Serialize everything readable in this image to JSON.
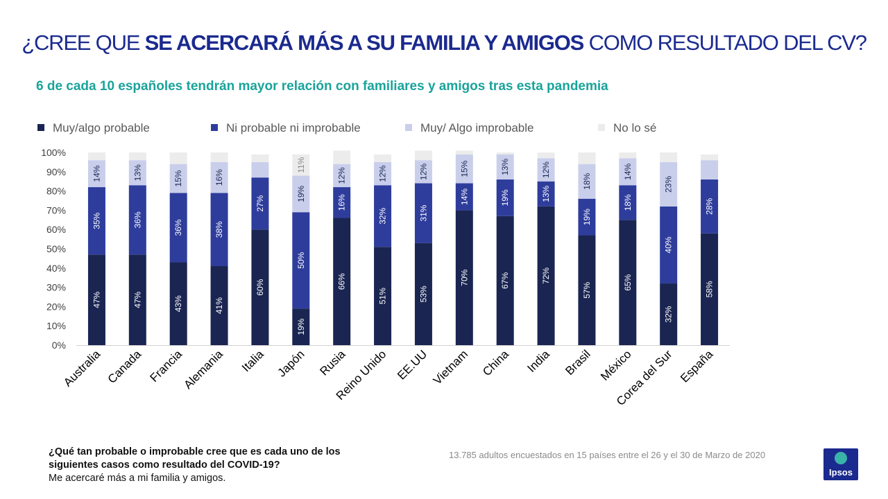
{
  "header": {
    "title_prefix": "¿CREE QUE ",
    "title_bold": "SE ACERCARÁ MÁS A SU FAMILIA Y AMIGOS",
    "title_suffix": " COMO RESULTADO DEL CV?",
    "subtitle": "6 de cada 10 españoles tendrán mayor relación con familiares  y amigos tras esta pandemia"
  },
  "colors": {
    "title": "#1b2a8f",
    "subtitle": "#1aa39a",
    "muy_algo_probable": "#1a2552",
    "ni_probable": "#2e3d9c",
    "improbable": "#c9cfeb",
    "no_lo_se": "#ececec",
    "logo": "#1b2a8f"
  },
  "chart_data": {
    "type": "bar",
    "stacked": true,
    "title": "",
    "xlabel": "",
    "ylabel": "",
    "ylim": [
      0,
      100
    ],
    "yticks": [
      "0%",
      "10%",
      "20%",
      "30%",
      "40%",
      "50%",
      "60%",
      "70%",
      "80%",
      "90%",
      "100%"
    ],
    "legend_position": "top",
    "categories": [
      "Australia",
      "Canada",
      "Francia",
      "Alemania",
      "Italia",
      "Japón",
      "Rusia",
      "Reino Unido",
      "EE.UU",
      "Vietnam",
      "China",
      "India",
      "Brasil",
      "México",
      "Corea del Sur",
      "España"
    ],
    "series": [
      {
        "name": "Muy/algo probable",
        "values": [
          47,
          47,
          43,
          41,
          60,
          19,
          66,
          51,
          53,
          70,
          67,
          72,
          57,
          65,
          32,
          58
        ],
        "labels": [
          "47%",
          "47%",
          "43%",
          "41%",
          "60%",
          "19%",
          "66%",
          "51%",
          "53%",
          "70%",
          "67%",
          "72%",
          "57%",
          "65%",
          "32%",
          "58%"
        ]
      },
      {
        "name": "Ni probable ni improbable",
        "values": [
          35,
          36,
          36,
          38,
          27,
          50,
          16,
          32,
          31,
          14,
          19,
          13,
          19,
          18,
          40,
          28
        ],
        "labels": [
          "35%",
          "36%",
          "36%",
          "38%",
          "27%",
          "50%",
          "16%",
          "32%",
          "31%",
          "14%",
          "19%",
          "13%",
          "19%",
          "18%",
          "40%",
          "28%"
        ]
      },
      {
        "name": "Muy/ Algo improbable",
        "values": [
          14,
          13,
          15,
          16,
          8,
          19,
          12,
          12,
          12,
          15,
          13,
          12,
          18,
          14,
          23,
          10
        ],
        "labels": [
          "14%",
          "13%",
          "15%",
          "16%",
          "",
          "19%",
          "12%",
          "12%",
          "12%",
          "15%",
          "13%",
          "12%",
          "18%",
          "14%",
          "23%",
          ""
        ]
      },
      {
        "name": "No lo sé",
        "values": [
          4,
          4,
          6,
          5,
          4,
          11,
          7,
          4,
          5,
          2,
          1,
          3,
          6,
          3,
          5,
          3
        ],
        "labels": [
          "",
          "",
          "",
          "",
          "",
          "11%",
          "",
          "",
          "",
          "",
          "",
          "",
          "",
          "",
          "",
          ""
        ]
      }
    ]
  },
  "footer": {
    "question": "¿Qué tan probable o improbable cree que es cada uno de los siguientes casos como resultado del  COVID-19?",
    "statement": "Me acercaré más a mi familia y amigos.",
    "source": "13.785 adultos encuestados en 15 países entre el 26 y el 30 de Marzo de 2020",
    "logo_text": "Ipsos"
  }
}
